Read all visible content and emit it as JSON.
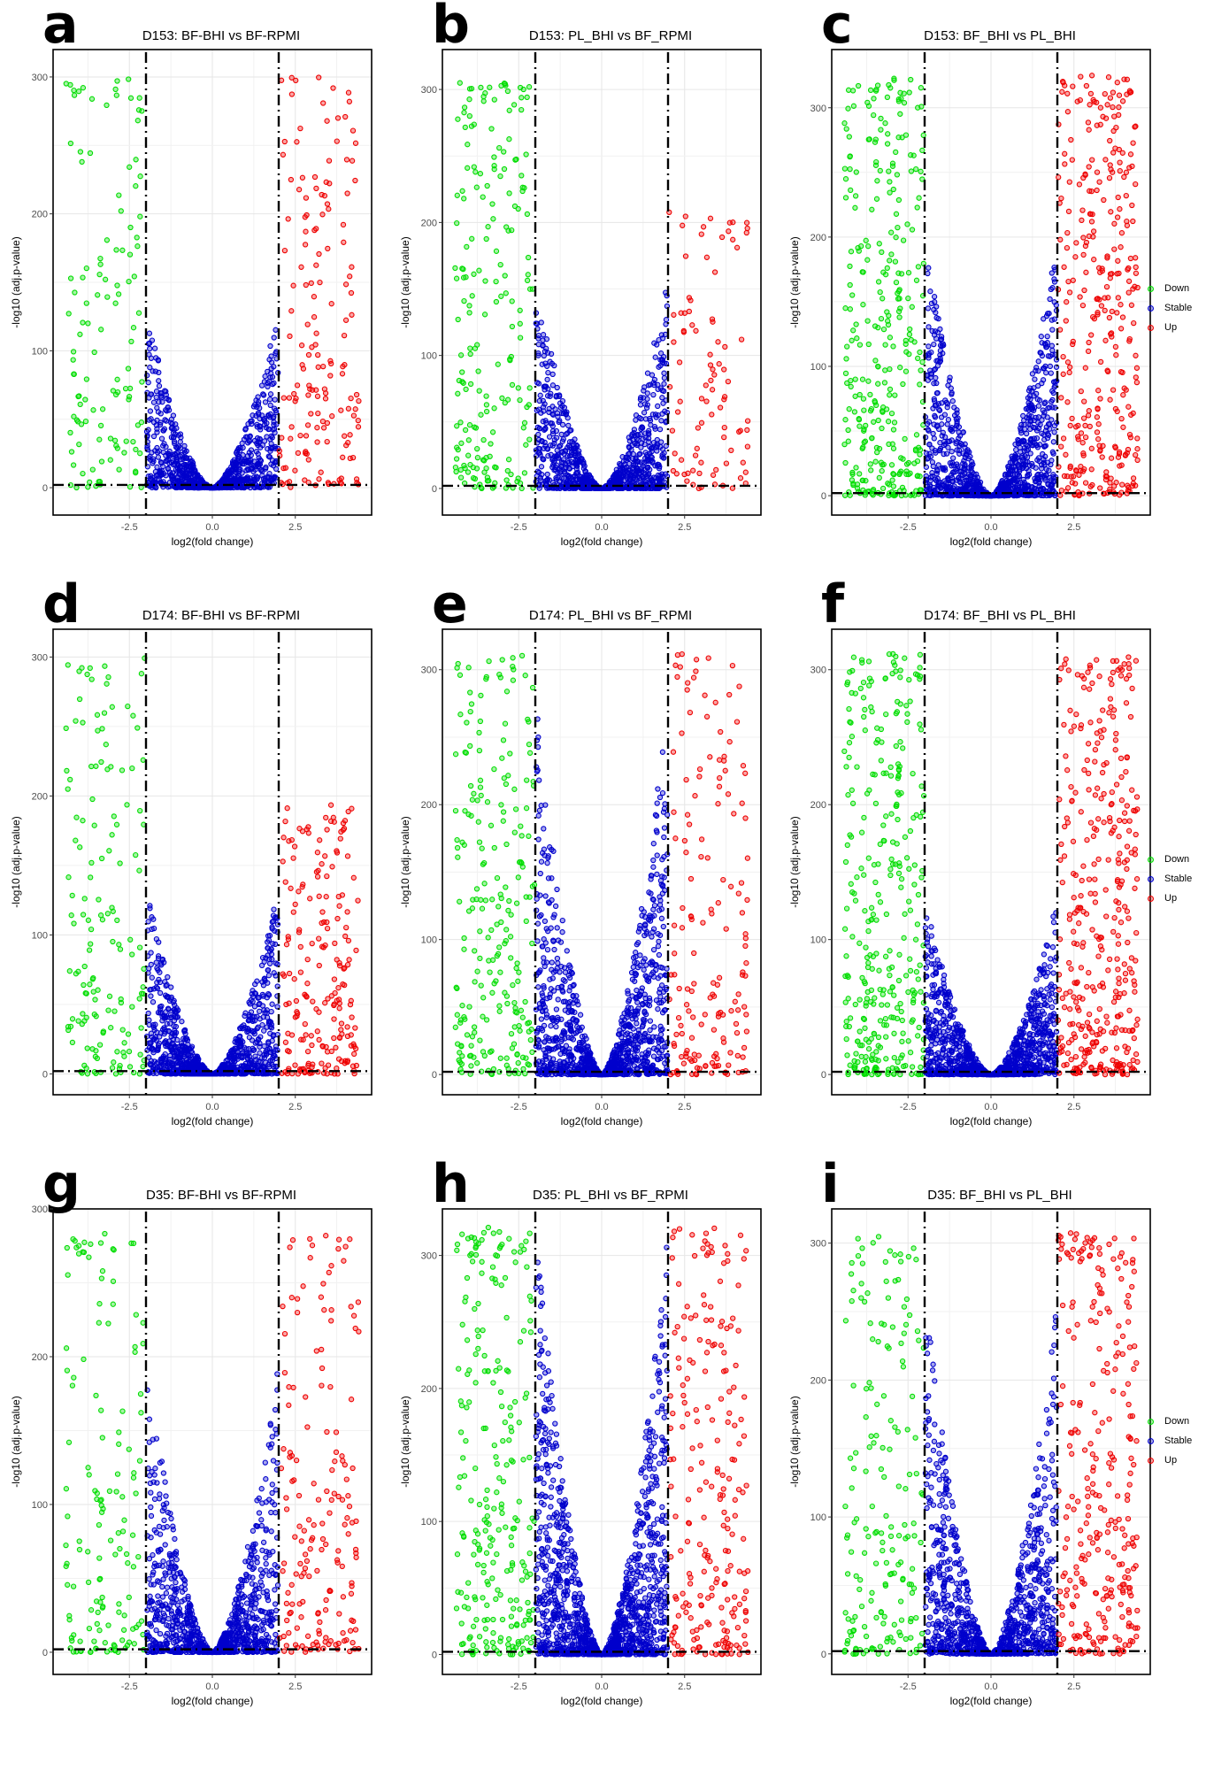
{
  "figure": {
    "legend": {
      "entries": [
        {
          "label": "Down",
          "color": "#00dd00"
        },
        {
          "label": "Stable",
          "color": "#0000cc"
        },
        {
          "label": "Up",
          "color": "#ee0000"
        }
      ]
    },
    "colors": {
      "down": "#00dd00",
      "stable": "#0000cc",
      "up": "#ee0000",
      "threshold": "#000000"
    }
  },
  "chart_data": [
    {
      "panel": "a",
      "type": "scatter",
      "title": "D153: BF-BHI vs BF-RPMI",
      "xlabel": "log2(fold change)",
      "ylabel": "-log10 (adj.p-value)",
      "xticks": [
        "-2.5",
        "0.0",
        "2.5"
      ],
      "yticks": [
        "0",
        "100",
        "200",
        "300"
      ],
      "xlim": [
        -4.8,
        4.8
      ],
      "ylim": [
        -20,
        320
      ],
      "thresholds": {
        "fc": [
          -2,
          2
        ],
        "p": 2
      },
      "grid": true,
      "series": [
        {
          "name": "Down",
          "n": 120,
          "ymax": 300
        },
        {
          "name": "Stable",
          "n": 900,
          "ymax": 130
        },
        {
          "name": "Up",
          "n": 160,
          "ymax": 300
        }
      ]
    },
    {
      "panel": "b",
      "type": "scatter",
      "title": "D153: PL_BHI vs BF_RPMI",
      "xlabel": "log2(fold change)",
      "ylabel": "-log10 (adj.p-value)",
      "xticks": [
        "-2.5",
        "0.0",
        "2.5"
      ],
      "yticks": [
        "0",
        "100",
        "200",
        "300"
      ],
      "xlim": [
        -4.8,
        4.8
      ],
      "ylim": [
        -20,
        330
      ],
      "thresholds": {
        "fc": [
          -2,
          2
        ],
        "p": 2
      },
      "grid": true,
      "series": [
        {
          "name": "Down",
          "n": 200,
          "ymax": 305
        },
        {
          "name": "Stable",
          "n": 1000,
          "ymax": 160
        },
        {
          "name": "Up",
          "n": 90,
          "ymax": 210
        }
      ]
    },
    {
      "panel": "c",
      "type": "scatter",
      "title": "D153: BF_BHI vs PL_BHI",
      "xlabel": "log2(fold change)",
      "ylabel": "-log10 (adj.p-value)",
      "xticks": [
        "-2.5",
        "0.0",
        "2.5"
      ],
      "yticks": [
        "0",
        "100",
        "200",
        "300"
      ],
      "xlim": [
        -4.8,
        4.8
      ],
      "ylim": [
        -15,
        345
      ],
      "thresholds": {
        "fc": [
          -2,
          2
        ],
        "p": 2
      },
      "grid": true,
      "series": [
        {
          "name": "Down",
          "n": 320,
          "ymax": 325
        },
        {
          "name": "Stable",
          "n": 1100,
          "ymax": 200
        },
        {
          "name": "Up",
          "n": 330,
          "ymax": 325
        }
      ]
    },
    {
      "panel": "d",
      "type": "scatter",
      "title": "D174: BF-BHI vs BF-RPMI",
      "xlabel": "log2(fold change)",
      "ylabel": "-log10 (adj.p-value)",
      "xticks": [
        "-2.5",
        "0.0",
        "2.5"
      ],
      "yticks": [
        "0",
        "100",
        "200",
        "300"
      ],
      "xlim": [
        -4.8,
        4.8
      ],
      "ylim": [
        -15,
        320
      ],
      "thresholds": {
        "fc": [
          -2,
          2
        ],
        "p": 2
      },
      "grid": true,
      "series": [
        {
          "name": "Down",
          "n": 150,
          "ymax": 300
        },
        {
          "name": "Stable",
          "n": 1000,
          "ymax": 135
        },
        {
          "name": "Up",
          "n": 200,
          "ymax": 195
        }
      ]
    },
    {
      "panel": "e",
      "type": "scatter",
      "title": "D174: PL_BHI vs BF_RPMI",
      "xlabel": "log2(fold change)",
      "ylabel": "-log10 (adj.p-value)",
      "xticks": [
        "-2.5",
        "0.0",
        "2.5"
      ],
      "yticks": [
        "0",
        "100",
        "200",
        "300"
      ],
      "xlim": [
        -4.8,
        4.8
      ],
      "ylim": [
        -15,
        330
      ],
      "thresholds": {
        "fc": [
          -2,
          2
        ],
        "p": 2
      },
      "grid": true,
      "series": [
        {
          "name": "Down",
          "n": 230,
          "ymax": 312
        },
        {
          "name": "Stable",
          "n": 1100,
          "ymax": 280
        },
        {
          "name": "Up",
          "n": 160,
          "ymax": 312
        }
      ]
    },
    {
      "panel": "f",
      "type": "scatter",
      "title": "D174: BF_BHI vs PL_BHI",
      "xlabel": "log2(fold change)",
      "ylabel": "-log10 (adj.p-value)",
      "xticks": [
        "-2.5",
        "0.0",
        "2.5"
      ],
      "yticks": [
        "0",
        "100",
        "200",
        "300"
      ],
      "xlim": [
        -4.8,
        4.8
      ],
      "ylim": [
        -15,
        330
      ],
      "thresholds": {
        "fc": [
          -2,
          2
        ],
        "p": 2
      },
      "grid": true,
      "series": [
        {
          "name": "Down",
          "n": 330,
          "ymax": 312
        },
        {
          "name": "Stable",
          "n": 1100,
          "ymax": 130
        },
        {
          "name": "Up",
          "n": 360,
          "ymax": 310
        }
      ]
    },
    {
      "panel": "g",
      "type": "scatter",
      "title": "D35: BF-BHI vs BF-RPMI",
      "xlabel": "log2(fold change)",
      "ylabel": "-log10 (adj.p-value)",
      "xticks": [
        "-2.5",
        "0.0",
        "2.5"
      ],
      "yticks": [
        "0",
        "100",
        "200",
        "300"
      ],
      "xlim": [
        -4.8,
        4.8
      ],
      "ylim": [
        -15,
        300
      ],
      "thresholds": {
        "fc": [
          -2,
          2
        ],
        "p": 2
      },
      "grid": true,
      "series": [
        {
          "name": "Down",
          "n": 140,
          "ymax": 285
        },
        {
          "name": "Stable",
          "n": 1000,
          "ymax": 200
        },
        {
          "name": "Up",
          "n": 170,
          "ymax": 285
        }
      ]
    },
    {
      "panel": "h",
      "type": "scatter",
      "title": "D35: PL_BHI vs BF_RPMI",
      "xlabel": "log2(fold change)",
      "ylabel": "-log10 (adj.p-value)",
      "xticks": [
        "-2.5",
        "0.0",
        "2.5"
      ],
      "yticks": [
        "0",
        "100",
        "200",
        "300"
      ],
      "xlim": [
        -4.8,
        4.8
      ],
      "ylim": [
        -15,
        335
      ],
      "thresholds": {
        "fc": [
          -2,
          2
        ],
        "p": 2
      },
      "grid": true,
      "series": [
        {
          "name": "Down",
          "n": 250,
          "ymax": 322
        },
        {
          "name": "Stable",
          "n": 1400,
          "ymax": 320
        },
        {
          "name": "Up",
          "n": 220,
          "ymax": 322
        }
      ]
    },
    {
      "panel": "i",
      "type": "scatter",
      "title": "D35: BF_BHI vs PL_BHI",
      "xlabel": "log2(fold change)",
      "ylabel": "-log10 (adj.p-value)",
      "xticks": [
        "-2.5",
        "0.0",
        "2.5"
      ],
      "yticks": [
        "0",
        "100",
        "200",
        "300"
      ],
      "xlim": [
        -4.8,
        4.8
      ],
      "ylim": [
        -15,
        325
      ],
      "thresholds": {
        "fc": [
          -2,
          2
        ],
        "p": 2
      },
      "grid": true,
      "series": [
        {
          "name": "Down",
          "n": 180,
          "ymax": 305
        },
        {
          "name": "Stable",
          "n": 1100,
          "ymax": 265
        },
        {
          "name": "Up",
          "n": 280,
          "ymax": 308
        }
      ]
    }
  ]
}
